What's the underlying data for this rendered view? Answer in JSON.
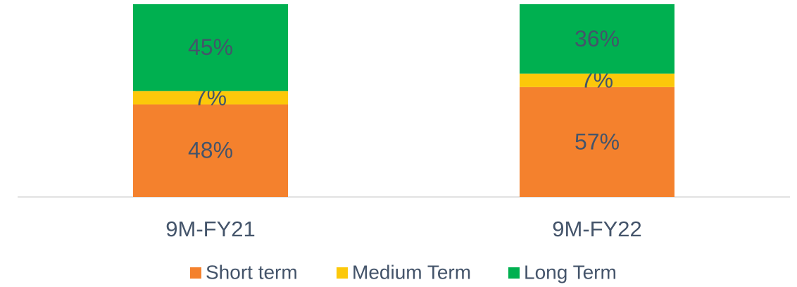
{
  "chart_data": {
    "type": "stacked_bar",
    "categories": [
      "9M-FY21",
      "9M-FY22"
    ],
    "series": [
      {
        "name": "Short term",
        "color": "#f4812d",
        "values": [
          48,
          57
        ],
        "value_labels": [
          "48%",
          "57%"
        ]
      },
      {
        "name": "Medium Term",
        "color": "#fcc80a",
        "values": [
          7,
          7
        ],
        "value_labels": [
          "7%",
          "7%"
        ]
      },
      {
        "name": "Long Term",
        "color": "#00b050",
        "values": [
          45,
          36
        ],
        "value_labels": [
          "45%",
          "36%"
        ]
      }
    ],
    "ylim": [
      0,
      100
    ],
    "legend": "bottom"
  }
}
